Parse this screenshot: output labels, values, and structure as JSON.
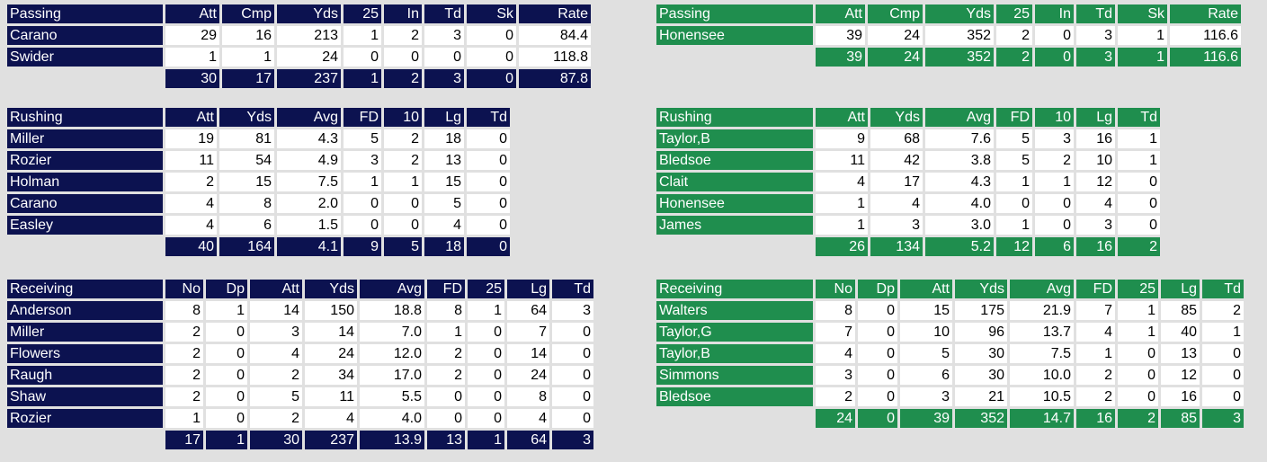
{
  "teams": [
    {
      "passing": {
        "header": [
          "Passing",
          "Att",
          "Cmp",
          "Yds",
          "25",
          "In",
          "Td",
          "Sk",
          "Rate"
        ],
        "rows": [
          [
            "Carano",
            "29",
            "16",
            "213",
            "1",
            "2",
            "3",
            "0",
            "84.4"
          ],
          [
            "Swider",
            "1",
            "1",
            "24",
            "0",
            "0",
            "0",
            "0",
            "118.8"
          ]
        ],
        "totals": [
          "30",
          "17",
          "237",
          "1",
          "2",
          "3",
          "0",
          "87.8"
        ]
      },
      "rushing": {
        "header": [
          "Rushing",
          "Att",
          "Yds",
          "Avg",
          "FD",
          "10",
          "Lg",
          "Td"
        ],
        "rows": [
          [
            "Miller",
            "19",
            "81",
            "4.3",
            "5",
            "2",
            "18",
            "0"
          ],
          [
            "Rozier",
            "11",
            "54",
            "4.9",
            "3",
            "2",
            "13",
            "0"
          ],
          [
            "Holman",
            "2",
            "15",
            "7.5",
            "1",
            "1",
            "15",
            "0"
          ],
          [
            "Carano",
            "4",
            "8",
            "2.0",
            "0",
            "0",
            "5",
            "0"
          ],
          [
            "Easley",
            "4",
            "6",
            "1.5",
            "0",
            "0",
            "4",
            "0"
          ]
        ],
        "totals": [
          "40",
          "164",
          "4.1",
          "9",
          "5",
          "18",
          "0"
        ]
      },
      "receiving": {
        "header": [
          "Receiving",
          "No",
          "Dp",
          "Att",
          "Yds",
          "Avg",
          "FD",
          "25",
          "Lg",
          "Td"
        ],
        "rows": [
          [
            "Anderson",
            "8",
            "1",
            "14",
            "150",
            "18.8",
            "8",
            "1",
            "64",
            "3"
          ],
          [
            "Miller",
            "2",
            "0",
            "3",
            "14",
            "7.0",
            "1",
            "0",
            "7",
            "0"
          ],
          [
            "Flowers",
            "2",
            "0",
            "4",
            "24",
            "12.0",
            "2",
            "0",
            "14",
            "0"
          ],
          [
            "Raugh",
            "2",
            "0",
            "2",
            "34",
            "17.0",
            "2",
            "0",
            "24",
            "0"
          ],
          [
            "Shaw",
            "2",
            "0",
            "5",
            "11",
            "5.5",
            "0",
            "0",
            "8",
            "0"
          ],
          [
            "Rozier",
            "1",
            "0",
            "2",
            "4",
            "4.0",
            "0",
            "0",
            "4",
            "0"
          ]
        ],
        "totals": [
          "17",
          "1",
          "30",
          "237",
          "13.9",
          "13",
          "1",
          "64",
          "3"
        ]
      }
    },
    {
      "passing": {
        "header": [
          "Passing",
          "Att",
          "Cmp",
          "Yds",
          "25",
          "In",
          "Td",
          "Sk",
          "Rate"
        ],
        "rows": [
          [
            "Honensee",
            "39",
            "24",
            "352",
            "2",
            "0",
            "3",
            "1",
            "116.6"
          ]
        ],
        "totals": [
          "39",
          "24",
          "352",
          "2",
          "0",
          "3",
          "1",
          "116.6"
        ]
      },
      "rushing": {
        "header": [
          "Rushing",
          "Att",
          "Yds",
          "Avg",
          "FD",
          "10",
          "Lg",
          "Td"
        ],
        "rows": [
          [
            "Taylor,B",
            "9",
            "68",
            "7.6",
            "5",
            "3",
            "16",
            "1"
          ],
          [
            "Bledsoe",
            "11",
            "42",
            "3.8",
            "5",
            "2",
            "10",
            "1"
          ],
          [
            "Clait",
            "4",
            "17",
            "4.3",
            "1",
            "1",
            "12",
            "0"
          ],
          [
            "Honensee",
            "1",
            "4",
            "4.0",
            "0",
            "0",
            "4",
            "0"
          ],
          [
            "James",
            "1",
            "3",
            "3.0",
            "1",
            "0",
            "3",
            "0"
          ]
        ],
        "totals": [
          "26",
          "134",
          "5.2",
          "12",
          "6",
          "16",
          "2"
        ]
      },
      "receiving": {
        "header": [
          "Receiving",
          "No",
          "Dp",
          "Att",
          "Yds",
          "Avg",
          "FD",
          "25",
          "Lg",
          "Td"
        ],
        "rows": [
          [
            "Walters",
            "8",
            "0",
            "15",
            "175",
            "21.9",
            "7",
            "1",
            "85",
            "2"
          ],
          [
            "Taylor,G",
            "7",
            "0",
            "10",
            "96",
            "13.7",
            "4",
            "1",
            "40",
            "1"
          ],
          [
            "Taylor,B",
            "4",
            "0",
            "5",
            "30",
            "7.5",
            "1",
            "0",
            "13",
            "0"
          ],
          [
            "Simmons",
            "3",
            "0",
            "6",
            "30",
            "10.0",
            "2",
            "0",
            "12",
            "0"
          ],
          [
            "Bledsoe",
            "2",
            "0",
            "3",
            "21",
            "10.5",
            "2",
            "0",
            "16",
            "0"
          ]
        ],
        "totals": [
          "24",
          "0",
          "39",
          "352",
          "14.7",
          "16",
          "2",
          "85",
          "3"
        ]
      }
    }
  ]
}
